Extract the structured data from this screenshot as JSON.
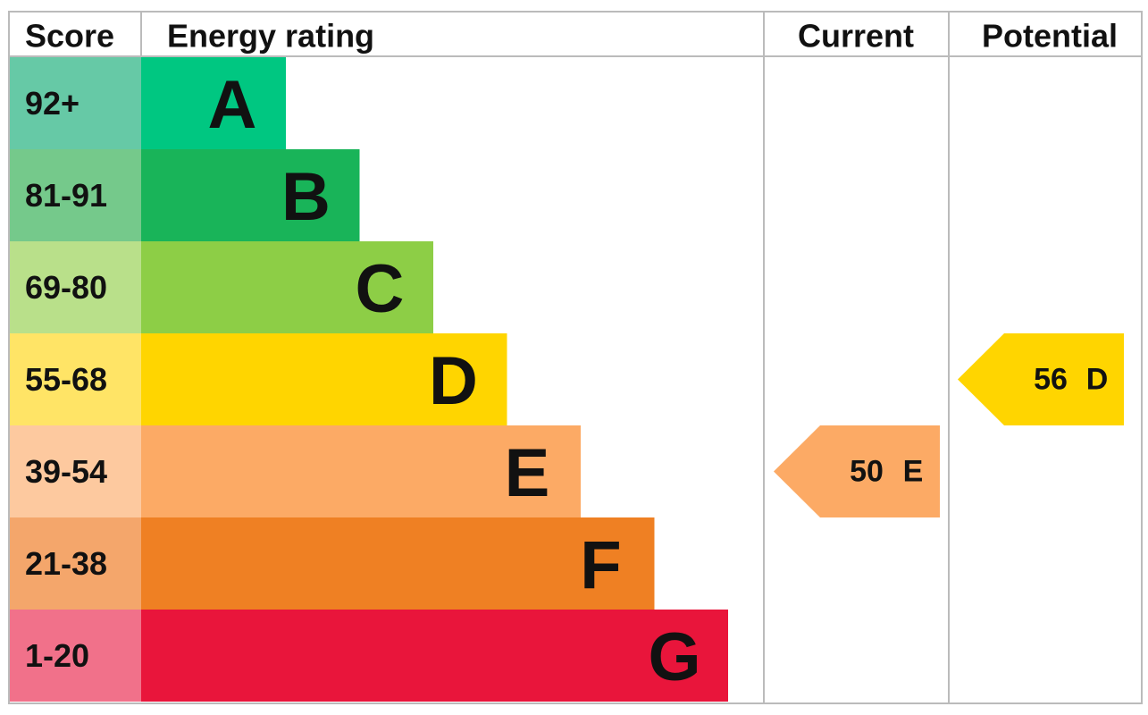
{
  "header": {
    "score": "Score",
    "rating": "Energy rating",
    "current": "Current",
    "potential": "Potential"
  },
  "bands": [
    {
      "score": "92+",
      "letter": "A",
      "color": "#00c781",
      "light": "#66c9a6"
    },
    {
      "score": "81-91",
      "letter": "B",
      "color": "#19b459",
      "light": "#75c98b"
    },
    {
      "score": "69-80",
      "letter": "C",
      "color": "#8dce46",
      "light": "#b9e08a"
    },
    {
      "score": "55-68",
      "letter": "D",
      "color": "#ffd500",
      "light": "#ffe466"
    },
    {
      "score": "39-54",
      "letter": "E",
      "color": "#fcaa65",
      "light": "#fdc99f"
    },
    {
      "score": "21-38",
      "letter": "F",
      "color": "#ef8023",
      "light": "#f4a66b"
    },
    {
      "score": "1-20",
      "letter": "G",
      "color": "#e9153b",
      "light": "#f1718a"
    }
  ],
  "current": {
    "value": 50,
    "letter": "E"
  },
  "potential": {
    "value": 56,
    "letter": "D"
  }
}
